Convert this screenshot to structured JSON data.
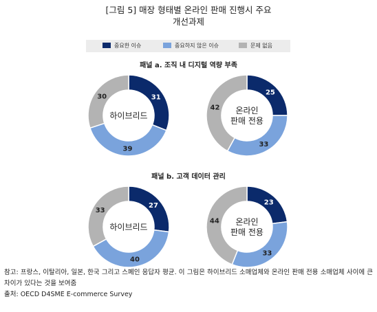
{
  "title_line1": "[그림 5] 매장 형태별 온라인 판매 진행시 주요",
  "title_line2": "개선과제",
  "legend": [
    {
      "label": "중요한 이슈",
      "color": "#0b2a6b"
    },
    {
      "label": "중요하지 않은 이슈",
      "color": "#7aa3dc"
    },
    {
      "label": "문제 없음",
      "color": "#b3b3b3"
    }
  ],
  "chart_data": [
    {
      "type": "pie",
      "panel": "패널 a. 조직 내 디지털 역량 부족",
      "center_label": [
        "하이브리드"
      ],
      "series": [
        {
          "name": "중요한 이슈",
          "value": 31
        },
        {
          "name": "중요하지 않은 이슈",
          "value": 39
        },
        {
          "name": "문제 없음",
          "value": 30
        }
      ]
    },
    {
      "type": "pie",
      "panel": "패널 a. 조직 내 디지털 역량 부족",
      "center_label": [
        "온라인",
        "판매 전용"
      ],
      "series": [
        {
          "name": "중요한 이슈",
          "value": 25
        },
        {
          "name": "중요하지 않은 이슈",
          "value": 33
        },
        {
          "name": "문제 없음",
          "value": 42
        }
      ]
    },
    {
      "type": "pie",
      "panel": "패널 b. 고객 데이터 관리",
      "center_label": [
        "하이브리드"
      ],
      "series": [
        {
          "name": "중요한 이슈",
          "value": 27
        },
        {
          "name": "중요하지 않은 이슈",
          "value": 40
        },
        {
          "name": "문제 없음",
          "value": 33
        }
      ]
    },
    {
      "type": "pie",
      "panel": "패널 b. 고객 데이터 관리",
      "center_label": [
        "온라인",
        "판매 전용"
      ],
      "series": [
        {
          "name": "중요한 이슈",
          "value": 23
        },
        {
          "name": "중요하지 않은 이슈",
          "value": 33
        },
        {
          "name": "문제 없음",
          "value": 44
        }
      ]
    }
  ],
  "panels": {
    "a": "패널 a. 조직 내 디지털 역량 부족",
    "b": "패널 b. 고객 데이터 관리"
  },
  "footer": {
    "note": "참고: 프랑스, 이탈리아, 일본, 한국 그리고 스페인 응답자 평균. 이 그림은 하이브리드 소매업체와 온라인 판매 전용 소매업체 사이에 큰 차이가 있다는 것을 보여줌",
    "source": "출처: OECD D4SME E-commerce Survey"
  }
}
